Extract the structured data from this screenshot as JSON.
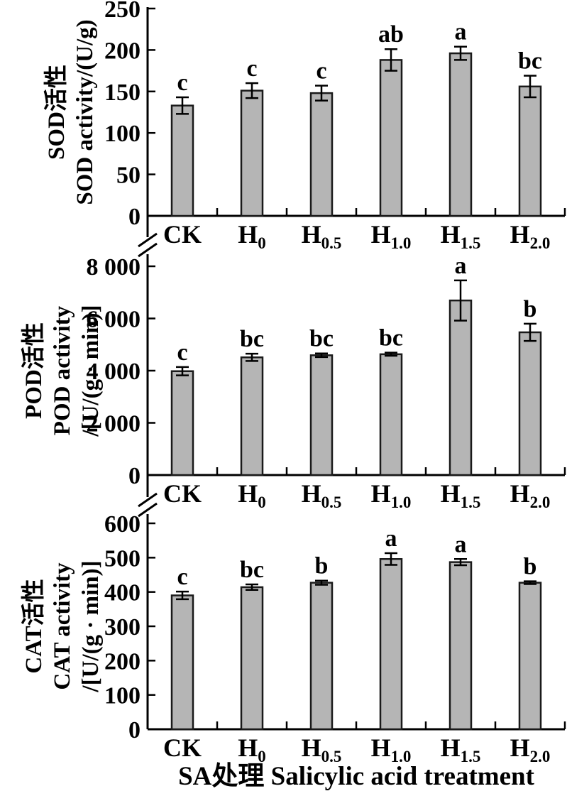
{
  "figure": {
    "x_axis_title": "SA处理 Salicylic acid treatment",
    "bar_fill": "#b5b5b5",
    "bar_stroke": "#1a1a1a",
    "axis_color": "#000000",
    "categories": [
      {
        "base": "CK",
        "sub": ""
      },
      {
        "base": "H",
        "sub": "0"
      },
      {
        "base": "H",
        "sub": "0.5"
      },
      {
        "base": "H",
        "sub": "1.0"
      },
      {
        "base": "H",
        "sub": "1.5"
      },
      {
        "base": "H",
        "sub": "2.0"
      }
    ]
  },
  "chart_data": [
    {
      "type": "bar",
      "panel": "SOD",
      "ylabel_lines": [
        "SOD活性",
        "SOD activity/(U/g)"
      ],
      "categories": [
        "CK",
        "H0",
        "H0.5",
        "H1.0",
        "H1.5",
        "H2.0"
      ],
      "values": [
        133,
        151,
        148,
        188,
        196,
        156
      ],
      "errors": [
        10,
        9,
        9,
        13,
        8,
        13
      ],
      "sig_letters": [
        "c",
        "c",
        "c",
        "ab",
        "a",
        "bc"
      ],
      "ylim": [
        0,
        250
      ],
      "ytick_step": 50,
      "ytick_labels": [
        "0",
        "50",
        "100",
        "150",
        "200",
        "250"
      ],
      "grid": "off",
      "legend": "none"
    },
    {
      "type": "bar",
      "panel": "POD",
      "ylabel_lines": [
        "POD活性",
        "POD activity",
        "/[U/(g · min)]"
      ],
      "categories": [
        "CK",
        "H0",
        "H0.5",
        "H1.0",
        "H1.5",
        "H2.0"
      ],
      "values": [
        3980,
        4510,
        4590,
        4630,
        6690,
        5470
      ],
      "errors": [
        160,
        140,
        70,
        60,
        770,
        330
      ],
      "sig_letters": [
        "c",
        "bc",
        "bc",
        "bc",
        "a",
        "b"
      ],
      "ylim": [
        0,
        8000
      ],
      "ytick_step": 2000,
      "ytick_labels": [
        "0",
        "2 000",
        "4 000",
        "6 000",
        "8 000"
      ],
      "grid": "off",
      "legend": "none"
    },
    {
      "type": "bar",
      "panel": "CAT",
      "ylabel_lines": [
        "CAT活性",
        "CAT activity",
        "/[U/(g · min)]"
      ],
      "categories": [
        "CK",
        "H0",
        "H0.5",
        "H1.0",
        "H1.5",
        "H2.0"
      ],
      "values": [
        390,
        414,
        427,
        496,
        487,
        427
      ],
      "errors": [
        11,
        8,
        6,
        17,
        9,
        4
      ],
      "sig_letters": [
        "c",
        "bc",
        "b",
        "a",
        "a",
        "b"
      ],
      "ylim": [
        0,
        600
      ],
      "ytick_step": 100,
      "ytick_labels": [
        "0",
        "100",
        "200",
        "300",
        "400",
        "500",
        "600"
      ],
      "grid": "off",
      "legend": "none"
    }
  ]
}
